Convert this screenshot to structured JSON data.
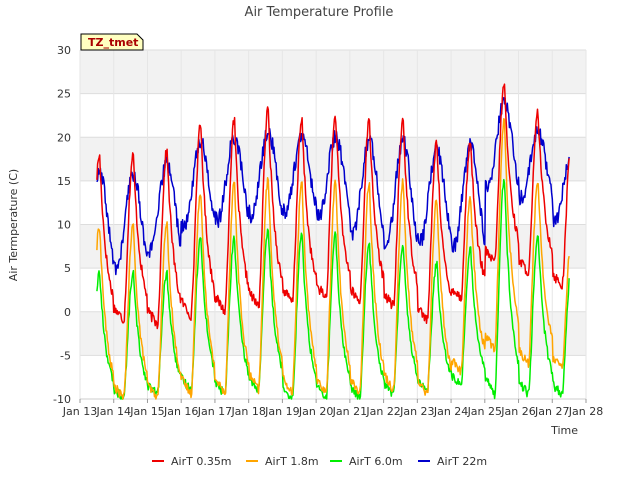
{
  "chart_data": {
    "type": "line",
    "title": "Air Temperature Profile",
    "xlabel": "Time",
    "ylabel": "Air Termperature (C)",
    "annotation": "TZ_tmet",
    "xlim": [
      13,
      28
    ],
    "ylim": [
      -10,
      30
    ],
    "x_ticks": [
      13,
      14,
      15,
      16,
      17,
      18,
      19,
      20,
      21,
      22,
      23,
      24,
      25,
      26,
      27,
      28
    ],
    "x_tick_labels": [
      "Jan 13",
      "Jan 14",
      "Jan 15",
      "Jan 16",
      "Jan 17",
      "Jan 18",
      "Jan 19",
      "Jan 20",
      "Jan 21",
      "Jan 22",
      "Jan 23",
      "Jan 24",
      "Jan 25",
      "Jan 26",
      "Jan 27",
      "Jan 28"
    ],
    "y_ticks": [
      -10,
      -5,
      0,
      5,
      10,
      15,
      20,
      25,
      30
    ],
    "y_tick_labels": [
      "-10",
      "-5",
      "0",
      "5",
      "10",
      "15",
      "20",
      "25",
      "30"
    ],
    "grid": true,
    "legend_position": "bottom",
    "x_start": 13.5,
    "x_end": 27.5,
    "series": [
      {
        "name": "AirT 0.35m",
        "color": "#ee0000",
        "min": [
          -1.0,
          -1.5,
          -0.5,
          0.0,
          0.5,
          1.0,
          1.5,
          1.0,
          0.5,
          -1.0,
          1.5,
          5.5,
          4.5,
          3.0
        ],
        "max": [
          18.0,
          18.5,
          21.5,
          22.0,
          23.2,
          22.0,
          22.5,
          22.0,
          22.2,
          19.5,
          19.5,
          26.2,
          22.8,
          20.0
        ]
      },
      {
        "name": "AirT 1.8m",
        "color": "#ffa500",
        "min": [
          -10.0,
          -10.0,
          -9.5,
          -9.5,
          -9.0,
          -9.5,
          -9.5,
          -9.5,
          -9.0,
          -9.5,
          -7.0,
          -4.5,
          -6.0,
          -6.5
        ],
        "max": [
          10.0,
          10.2,
          14.0,
          15.0,
          15.3,
          15.0,
          15.0,
          15.0,
          15.0,
          13.0,
          13.2,
          22.0,
          15.2,
          8.8
        ]
      },
      {
        "name": "AirT 6.0m",
        "color": "#00ee00",
        "min": [
          -10.0,
          -9.5,
          -9.0,
          -9.5,
          -9.0,
          -10.0,
          -10.0,
          -10.0,
          -9.5,
          -9.0,
          -8.5,
          -9.5,
          -9.5,
          -9.5
        ],
        "max": [
          4.5,
          4.5,
          8.5,
          8.5,
          9.5,
          9.0,
          8.8,
          8.0,
          8.0,
          5.5,
          7.2,
          15.5,
          9.0,
          5.5
        ]
      },
      {
        "name": "AirT 22m",
        "color": "#0000cc",
        "min": [
          5.0,
          7.0,
          9.5,
          10.5,
          11.0,
          11.5,
          11.0,
          9.0,
          7.5,
          8.0,
          7.5,
          14.0,
          13.0,
          10.5
        ],
        "max": [
          15.8,
          17.0,
          19.5,
          20.0,
          20.5,
          20.0,
          20.0,
          19.5,
          19.5,
          18.5,
          19.0,
          24.0,
          20.5,
          18.0
        ]
      }
    ]
  }
}
